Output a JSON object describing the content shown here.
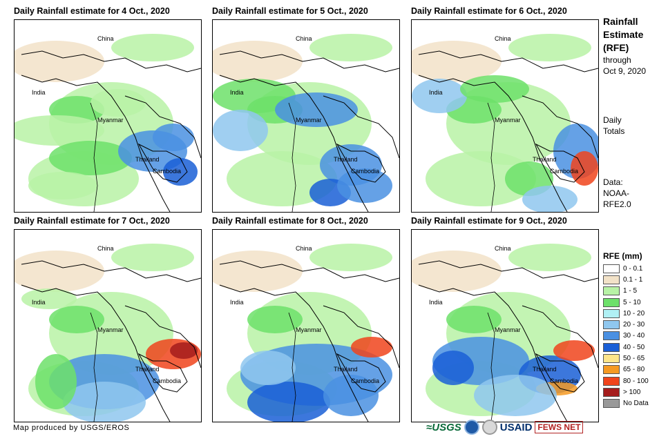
{
  "panels": [
    {
      "title": "Daily Rainfall estimate for 4 Oct., 2020"
    },
    {
      "title": "Daily Rainfall estimate for 5 Oct., 2020"
    },
    {
      "title": "Daily Rainfall estimate for 6 Oct., 2020"
    },
    {
      "title": "Daily Rainfall estimate for 7 Oct., 2020"
    },
    {
      "title": "Daily Rainfall estimate for 8 Oct., 2020"
    },
    {
      "title": "Daily Rainfall estimate for 9 Oct., 2020"
    }
  ],
  "map_labels": {
    "china": "China",
    "india": "India",
    "myanmar": "Myanmar",
    "thailand": "Thailand",
    "cambodia": "Cambodia"
  },
  "sidebar": {
    "title_line1": "Rainfall",
    "title_line2": "Estimate",
    "title_line3": "(RFE)",
    "through_line1": "through",
    "through_line2": "Oct 9, 2020",
    "daily_line1": "Daily",
    "daily_line2": "Totals",
    "data_line1": "Data:",
    "data_line2": "NOAA-",
    "data_line3": "RFE2.0"
  },
  "legend": {
    "title": "RFE (mm)",
    "items": [
      {
        "label": "0 - 0.1",
        "color": "#ffffff"
      },
      {
        "label": "0.1 - 1",
        "color": "#f2e2c8"
      },
      {
        "label": "1 - 5",
        "color": "#b8f2a6"
      },
      {
        "label": "5 - 10",
        "color": "#6de06a"
      },
      {
        "label": "10 - 20",
        "color": "#b0f0f4"
      },
      {
        "label": "20 - 30",
        "color": "#8fc7ef"
      },
      {
        "label": "30 - 40",
        "color": "#4a90e2"
      },
      {
        "label": "40 - 50",
        "color": "#1a5fd6"
      },
      {
        "label": "50 - 65",
        "color": "#fde58a"
      },
      {
        "label": "65 - 80",
        "color": "#f59a23"
      },
      {
        "label": "80 - 100",
        "color": "#f0441c"
      },
      {
        "label": "> 100",
        "color": "#a51c1c"
      },
      {
        "label": "No Data",
        "color": "#999999"
      }
    ]
  },
  "footer": {
    "credit": "Map produced by USGS/EROS"
  },
  "logos": {
    "usgs": "≈USGS",
    "usaid": "USAID",
    "fews": "FEWS NET"
  }
}
